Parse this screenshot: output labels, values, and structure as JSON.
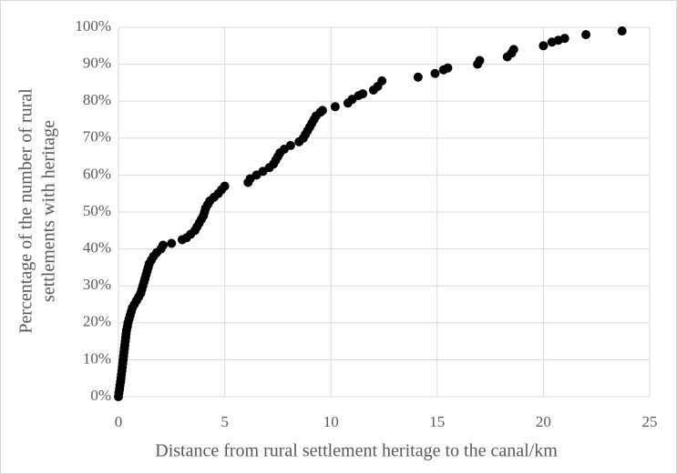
{
  "chart_data": {
    "type": "scatter",
    "x_label": "Distance from rural settlement heritage to the canal/km",
    "y_label": [
      "Percentage of the number of rural",
      "settlements with heritage"
    ],
    "xlim": [
      0,
      25
    ],
    "xticks": [
      0,
      5,
      10,
      15,
      20,
      25
    ],
    "ylim": [
      0,
      100
    ],
    "yticks": [
      {
        "value": 0,
        "label": "0%"
      },
      {
        "value": 10,
        "label": "10%"
      },
      {
        "value": 20,
        "label": "20%"
      },
      {
        "value": 30,
        "label": "30%"
      },
      {
        "value": 40,
        "label": "40%"
      },
      {
        "value": 50,
        "label": "50%"
      },
      {
        "value": 60,
        "label": "60%"
      },
      {
        "value": 70,
        "label": "70%"
      },
      {
        "value": 80,
        "label": "80%"
      },
      {
        "value": 90,
        "label": "90%"
      },
      {
        "value": 100,
        "label": "100%"
      }
    ],
    "grid": true,
    "color": "#000000",
    "x": [
      0,
      0.02,
      0.05,
      0.07,
      0.1,
      0.12,
      0.14,
      0.16,
      0.18,
      0.2,
      0.22,
      0.24,
      0.26,
      0.28,
      0.3,
      0.32,
      0.34,
      0.36,
      0.38,
      0.42,
      0.45,
      0.5,
      0.55,
      0.6,
      0.65,
      0.75,
      0.85,
      0.95,
      1.05,
      1.1,
      1.15,
      1.2,
      1.25,
      1.3,
      1.35,
      1.4,
      1.45,
      1.55,
      1.65,
      1.8,
      2.0,
      2.1,
      2.5,
      3.0,
      3.2,
      3.4,
      3.6,
      3.7,
      3.8,
      3.9,
      4.0,
      4.05,
      4.1,
      4.2,
      4.3,
      4.5,
      4.7,
      4.85,
      5.0,
      6.1,
      6.2,
      6.5,
      6.8,
      7.1,
      7.3,
      7.4,
      7.5,
      7.6,
      7.8,
      8.1,
      8.5,
      8.7,
      8.8,
      8.9,
      9.0,
      9.1,
      9.2,
      9.3,
      9.5,
      9.6,
      10.2,
      10.8,
      11.0,
      11.3,
      11.5,
      12.0,
      12.2,
      12.4,
      14.1,
      14.9,
      15.3,
      15.5,
      16.9,
      17.0,
      18.3,
      18.5,
      18.6,
      20.0,
      20.4,
      20.7,
      21.0,
      22.0,
      23.7
    ],
    "values": [
      0,
      1,
      2,
      3,
      4,
      5,
      6,
      7,
      8,
      9,
      10,
      11,
      12,
      13,
      14,
      15,
      16,
      17,
      18,
      19,
      20,
      21,
      22,
      23,
      24,
      25,
      26,
      27,
      28,
      29,
      30,
      31,
      32,
      33,
      34,
      35,
      36,
      37,
      38,
      39,
      40,
      41,
      41.5,
      42.5,
      43,
      44,
      45,
      46,
      47,
      48,
      49,
      50,
      51,
      52,
      53,
      54,
      55,
      56,
      57,
      58,
      59,
      60,
      61,
      62,
      63,
      64,
      65,
      66,
      67,
      68,
      69,
      70,
      71,
      72,
      73,
      74,
      75,
      76,
      77,
      77.5,
      78.5,
      79.5,
      80.5,
      81.5,
      82,
      83,
      84,
      85.5,
      86.5,
      87.5,
      88.5,
      89,
      90,
      91,
      92,
      93,
      94,
      95,
      96,
      96.5,
      97,
      98,
      99
    ]
  }
}
